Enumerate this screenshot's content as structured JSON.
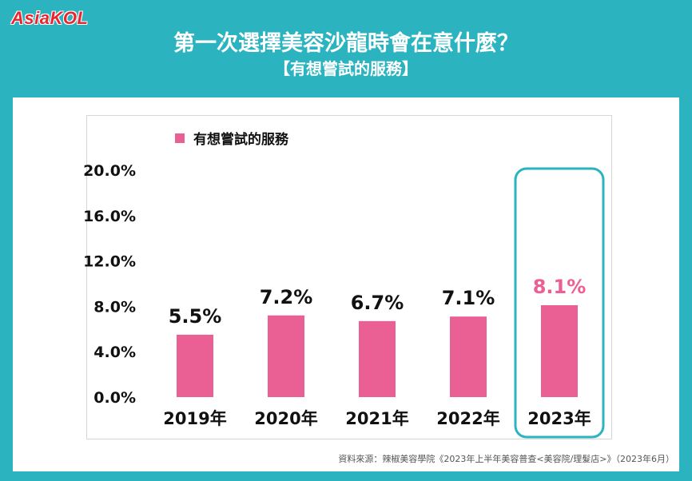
{
  "logo": {
    "text": "AsiaKOL"
  },
  "header": {
    "title": "第一次選擇美容沙龍時會在意什麼？",
    "subtitle": "【有想嘗試的服務】"
  },
  "colors": {
    "bar": "#ea5f94",
    "highlight_label": "#ea5f94",
    "highlight_frame": "#2bb3c0",
    "background": "#2bb3c0"
  },
  "chart_data": {
    "type": "bar",
    "categories": [
      "2019年",
      "2020年",
      "2021年",
      "2022年",
      "2023年"
    ],
    "series": [
      {
        "name": "有想嘗試的服務",
        "values": [
          5.5,
          7.2,
          6.7,
          7.1,
          8.1
        ]
      }
    ],
    "data_labels": [
      "5.5%",
      "7.2%",
      "6.7%",
      "7.1%",
      "8.1%"
    ],
    "y_ticks": [
      "0.0%",
      "4.0%",
      "8.0%",
      "12.0%",
      "16.0%",
      "20.0%"
    ],
    "ylim": [
      0,
      20
    ],
    "grid": false,
    "legend": "top-left",
    "highlight_index": 4
  },
  "footer": {
    "source": "資料來源：辣椒美容學院《2023年上半年美容普查<美容院/理髮店>》（2023年6月）"
  }
}
